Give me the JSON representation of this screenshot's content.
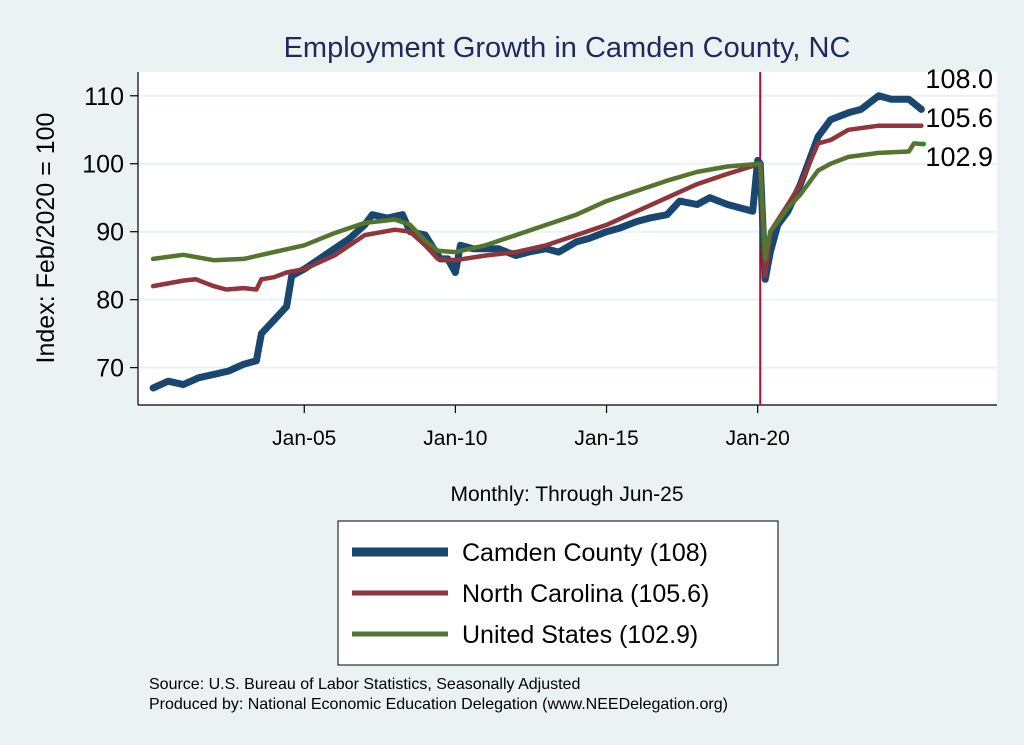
{
  "chart_data": {
    "type": "line",
    "title": "Employment Growth in Camden  County, NC",
    "xlabel": "Monthly: Through Jun-25",
    "ylabel": "Index: Feb/2020 = 100",
    "ylim": [
      64.5,
      113.5
    ],
    "xlim": [
      "1999-07",
      "2027-12"
    ],
    "yticks": [
      70,
      80,
      90,
      100,
      110
    ],
    "xticks": [
      {
        "date": "2005-01",
        "label": "Jan-05"
      },
      {
        "date": "2010-01",
        "label": "Jan-10"
      },
      {
        "date": "2015-01",
        "label": "Jan-15"
      },
      {
        "date": "2020-01",
        "label": "Jan-20"
      }
    ],
    "grid": true,
    "reference_line": {
      "date": "2020-02",
      "color": "#c10534"
    },
    "legend_position": "bottom",
    "series": [
      {
        "name": "Camden  County (108)",
        "color": "#1a476f",
        "end_label": "108.0",
        "points": [
          [
            "2000-01",
            67
          ],
          [
            "2000-07",
            68
          ],
          [
            "2001-01",
            67.5
          ],
          [
            "2001-07",
            68.5
          ],
          [
            "2002-01",
            69
          ],
          [
            "2002-07",
            69.5
          ],
          [
            "2003-01",
            70.5
          ],
          [
            "2003-06",
            71
          ],
          [
            "2003-08",
            75
          ],
          [
            "2004-01",
            77
          ],
          [
            "2004-06",
            79
          ],
          [
            "2004-08",
            83.5
          ],
          [
            "2005-01",
            84.5
          ],
          [
            "2005-07",
            86
          ],
          [
            "2006-01",
            87.5
          ],
          [
            "2006-07",
            89
          ],
          [
            "2007-01",
            91
          ],
          [
            "2007-04",
            92.5
          ],
          [
            "2007-10",
            92
          ],
          [
            "2008-04",
            92.5
          ],
          [
            "2008-07",
            90
          ],
          [
            "2009-01",
            89.5
          ],
          [
            "2009-07",
            86
          ],
          [
            "2009-10",
            86
          ],
          [
            "2010-01",
            84
          ],
          [
            "2010-03",
            88
          ],
          [
            "2010-08",
            87.5
          ],
          [
            "2011-06",
            87.5
          ],
          [
            "2012-01",
            86.5
          ],
          [
            "2012-06",
            87
          ],
          [
            "2013-01",
            87.5
          ],
          [
            "2013-06",
            87
          ],
          [
            "2014-01",
            88.5
          ],
          [
            "2014-06",
            89
          ],
          [
            "2015-01",
            90
          ],
          [
            "2015-06",
            90.5
          ],
          [
            "2016-01",
            91.5
          ],
          [
            "2016-06",
            92
          ],
          [
            "2017-01",
            92.5
          ],
          [
            "2017-06",
            94.5
          ],
          [
            "2018-01",
            94
          ],
          [
            "2018-06",
            95
          ],
          [
            "2019-01",
            94
          ],
          [
            "2019-06",
            93.5
          ],
          [
            "2019-11",
            93
          ],
          [
            "2020-01",
            100.5
          ],
          [
            "2020-02",
            100
          ],
          [
            "2020-04",
            83
          ],
          [
            "2020-06",
            87
          ],
          [
            "2020-09",
            91
          ],
          [
            "2021-01",
            93
          ],
          [
            "2021-06",
            97
          ],
          [
            "2022-01",
            104
          ],
          [
            "2022-06",
            106.5
          ],
          [
            "2023-01",
            107.5
          ],
          [
            "2023-06",
            108
          ],
          [
            "2024-01",
            110
          ],
          [
            "2024-06",
            109.5
          ],
          [
            "2025-01",
            109.5
          ],
          [
            "2025-06",
            108
          ]
        ]
      },
      {
        "name": "North Carolina (105.6)",
        "color": "#90353b",
        "end_label": "105.6",
        "points": [
          [
            "2000-01",
            82
          ],
          [
            "2001-01",
            82.8
          ],
          [
            "2001-06",
            83
          ],
          [
            "2002-01",
            82
          ],
          [
            "2002-06",
            81.5
          ],
          [
            "2003-01",
            81.7
          ],
          [
            "2003-06",
            81.5
          ],
          [
            "2003-08",
            83
          ],
          [
            "2004-01",
            83.3
          ],
          [
            "2004-06",
            84
          ],
          [
            "2005-01",
            84.5
          ],
          [
            "2006-01",
            86.5
          ],
          [
            "2007-01",
            89.5
          ],
          [
            "2008-01",
            90.3
          ],
          [
            "2008-07",
            90
          ],
          [
            "2009-01",
            88
          ],
          [
            "2009-06",
            86
          ],
          [
            "2010-01",
            85.8
          ],
          [
            "2011-01",
            86.5
          ],
          [
            "2012-01",
            87
          ],
          [
            "2013-01",
            88
          ],
          [
            "2014-01",
            89.5
          ],
          [
            "2015-01",
            91
          ],
          [
            "2016-01",
            93
          ],
          [
            "2017-01",
            95
          ],
          [
            "2018-01",
            97
          ],
          [
            "2019-01",
            98.5
          ],
          [
            "2020-02",
            100
          ],
          [
            "2020-04",
            83.5
          ],
          [
            "2020-06",
            90
          ],
          [
            "2021-01",
            94
          ],
          [
            "2021-06",
            97
          ],
          [
            "2022-01",
            103
          ],
          [
            "2022-06",
            103.5
          ],
          [
            "2023-01",
            105
          ],
          [
            "2024-01",
            105.6
          ],
          [
            "2025-06",
            105.6
          ]
        ]
      },
      {
        "name": "United States (102.9)",
        "color": "#55752f",
        "end_label": "102.9",
        "points": [
          [
            "2000-01",
            86
          ],
          [
            "2001-01",
            86.6
          ],
          [
            "2002-01",
            85.8
          ],
          [
            "2003-01",
            86
          ],
          [
            "2004-01",
            87
          ],
          [
            "2005-01",
            88
          ],
          [
            "2006-01",
            89.8
          ],
          [
            "2007-01",
            91.3
          ],
          [
            "2008-01",
            91.8
          ],
          [
            "2008-07",
            91
          ],
          [
            "2009-01",
            88.7
          ],
          [
            "2009-06",
            87.2
          ],
          [
            "2010-01",
            87
          ],
          [
            "2011-01",
            88
          ],
          [
            "2012-01",
            89.5
          ],
          [
            "2013-01",
            91
          ],
          [
            "2014-01",
            92.5
          ],
          [
            "2015-01",
            94.5
          ],
          [
            "2016-01",
            96
          ],
          [
            "2017-01",
            97.5
          ],
          [
            "2018-01",
            98.8
          ],
          [
            "2019-01",
            99.6
          ],
          [
            "2020-02",
            100
          ],
          [
            "2020-04",
            86
          ],
          [
            "2020-06",
            90
          ],
          [
            "2021-01",
            93.5
          ],
          [
            "2021-06",
            95.5
          ],
          [
            "2022-01",
            99
          ],
          [
            "2022-06",
            100
          ],
          [
            "2023-01",
            101
          ],
          [
            "2024-01",
            101.6
          ],
          [
            "2025-01",
            101.8
          ],
          [
            "2025-03",
            103
          ],
          [
            "2025-06",
            102.9
          ]
        ]
      }
    ]
  },
  "footer": {
    "source": "Source: U.S. Bureau of Labor Statistics, Seasonally Adjusted",
    "produced_by": "Produced by: National Economic Education Delegation (www.NEEDelegation.org)"
  }
}
